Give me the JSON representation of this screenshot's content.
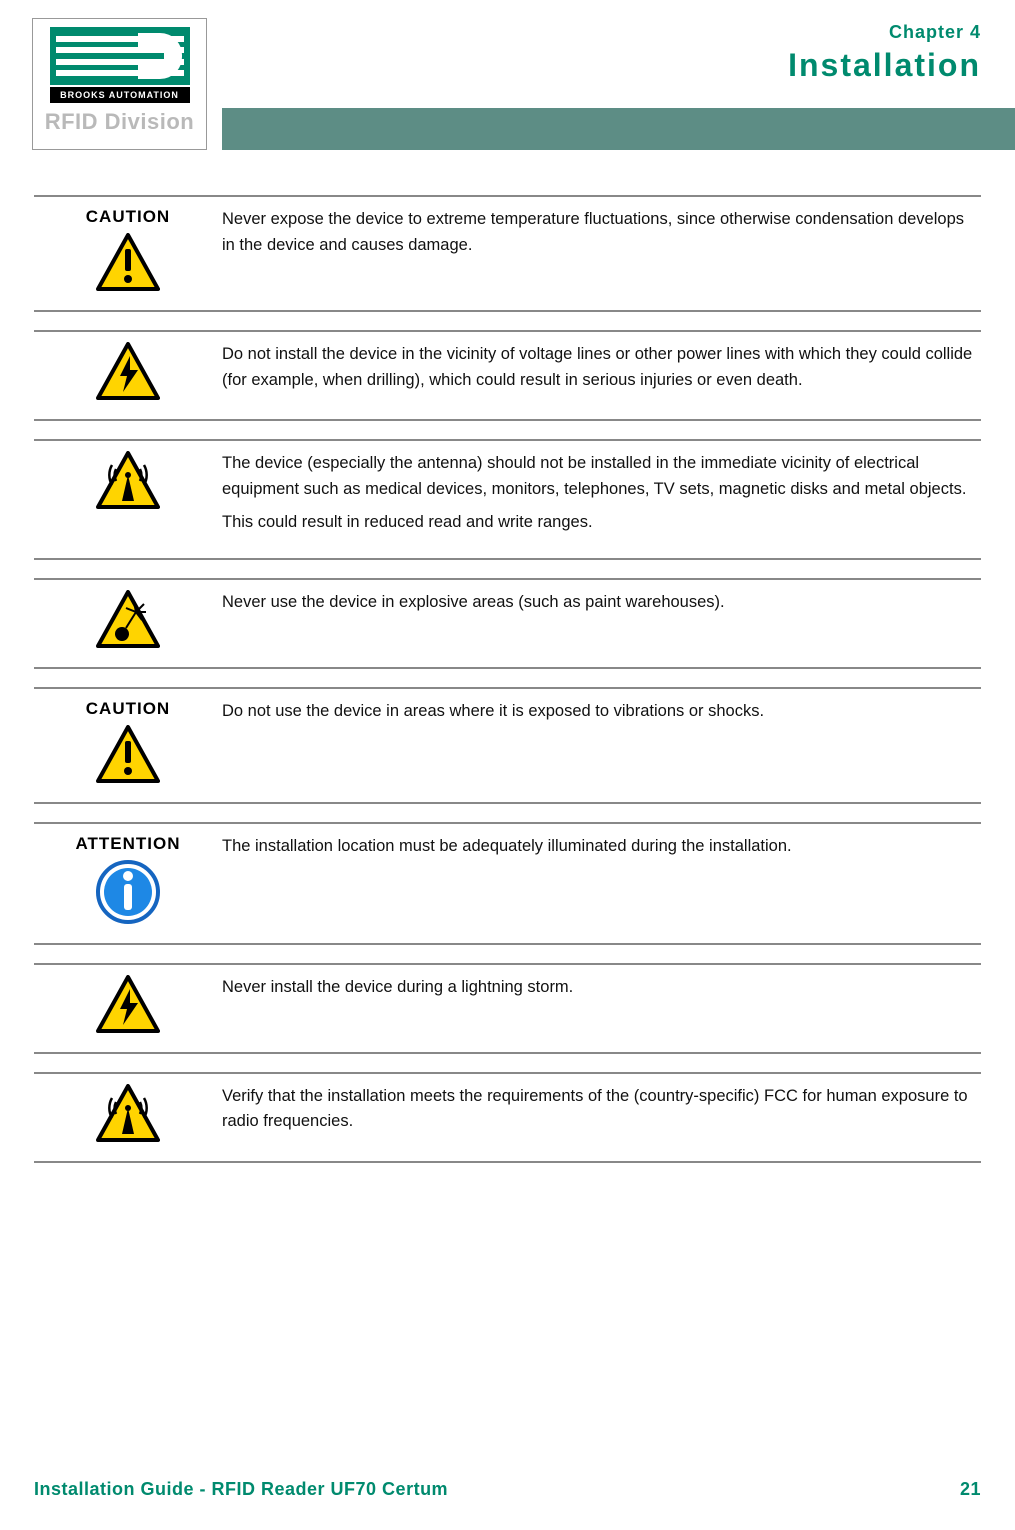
{
  "colors": {
    "brand_green": "#008a6e",
    "strip_bg": "#5d8d85",
    "rule": "#888888",
    "text": "#111111",
    "rfid_grey": "#b9b9b9",
    "warn_yellow": "#ffd400",
    "warn_border": "#000000",
    "attention_blue": "#1e88e5",
    "attention_ring": "#1565c0"
  },
  "header": {
    "brooks_text": "BROOKS AUTOMATION",
    "rfid_text": "RFID Division",
    "chapter_label": "Chapter 4",
    "chapter_title": "Installation"
  },
  "notices": [
    {
      "label": "CAUTION",
      "icon": "caution",
      "paragraphs": [
        "Never expose the device to extreme temperature fluctuations, since otherwise condensation develops in the device and causes damage."
      ]
    },
    {
      "label": "",
      "icon": "electric",
      "paragraphs": [
        "Do not install the device in the vicinity of voltage lines or other power lines with which they could collide (for example, when drilling), which could result in serious injuries or even death."
      ]
    },
    {
      "label": "",
      "icon": "radio",
      "paragraphs": [
        "The device (especially the antenna) should not be installed in the immediate vicinity of electrical equipment such as medical devices, monitors, telephones, TV sets, magnetic disks and metal objects.",
        "This could result in reduced read and write ranges."
      ]
    },
    {
      "label": "",
      "icon": "explosion",
      "paragraphs": [
        "Never use the device in explosive areas (such as paint warehouses)."
      ]
    },
    {
      "label": "CAUTION",
      "icon": "caution",
      "paragraphs": [
        "Do not use the device in areas where it is exposed to vibrations or shocks."
      ]
    },
    {
      "label": "ATTENTION",
      "icon": "attention",
      "paragraphs": [
        "The installation location must be adequately illuminated during the installation."
      ]
    },
    {
      "label": "",
      "icon": "electric",
      "paragraphs": [
        "Never install the device during a lightning storm."
      ]
    },
    {
      "label": "",
      "icon": "radio",
      "paragraphs": [
        "Verify that the installation meets the requirements of the (country-specific) FCC for human exposure to radio frequencies."
      ]
    }
  ],
  "footer": {
    "left": "Installation Guide - RFID Reader UF70 Certum",
    "page": "21"
  },
  "icon_svg_size": 64
}
